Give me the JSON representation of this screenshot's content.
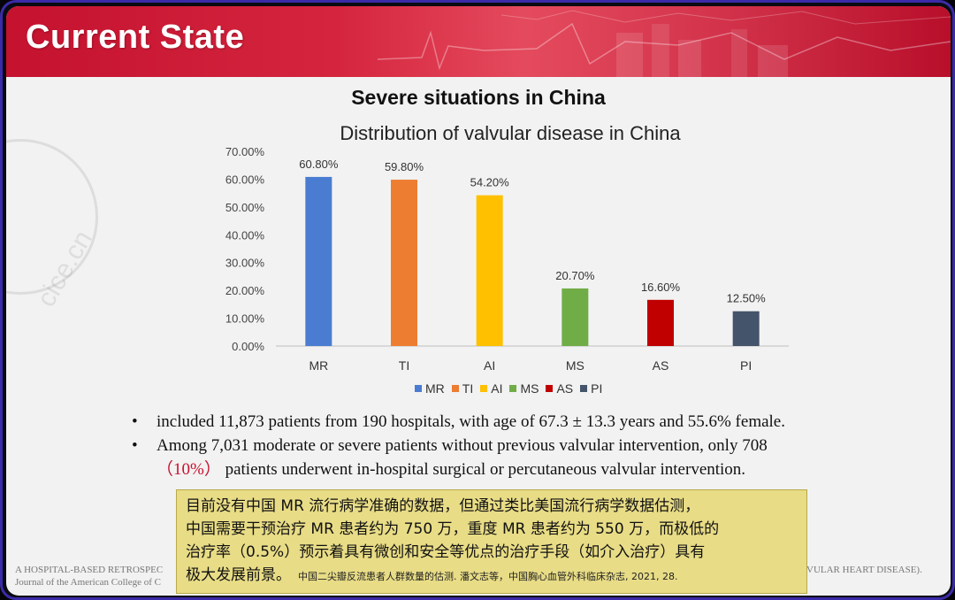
{
  "slide": {
    "banner_title": "Current State",
    "heading": "Severe situations in China"
  },
  "chart_data": {
    "type": "bar",
    "title": "Distribution of valvular disease in China",
    "categories": [
      "MR",
      "TI",
      "AI",
      "MS",
      "AS",
      "PI"
    ],
    "values": [
      60.8,
      59.8,
      54.2,
      20.7,
      16.6,
      12.5
    ],
    "data_labels": [
      "60.80%",
      "59.80%",
      "54.20%",
      "20.70%",
      "16.60%",
      "12.50%"
    ],
    "colors": [
      "#4a7dd1",
      "#ed7d31",
      "#ffc000",
      "#70ad47",
      "#c00000",
      "#44546a"
    ],
    "ylim": [
      0,
      70
    ],
    "yticks": [
      0,
      10,
      20,
      30,
      40,
      50,
      60,
      70
    ],
    "ytick_labels": [
      "0.00%",
      "10.00%",
      "20.00%",
      "30.00%",
      "40.00%",
      "50.00%",
      "60.00%",
      "70.00%"
    ],
    "legend": [
      "MR",
      "TI",
      "AI",
      "MS",
      "AS",
      "PI"
    ],
    "legend_position": "bottom",
    "grid": false
  },
  "bullets": {
    "b1": "included 11,873 patients from 190 hospitals, with age of 67.3 ± 13.3 years and 55.6% female.",
    "b2_part1": "Among 7,031 moderate or severe patients without previous valvular intervention, only 708",
    "b2_highlight": "（10%）",
    "b2_part2": "patients underwent in-hospital surgical or percutaneous valvular intervention.",
    "bullet_symbol": "•"
  },
  "reference": {
    "line1_left": "A HOSPITAL-BASED RETROSPEC",
    "line1_right": "VULAR HEART DISEASE).",
    "line2_left": "Journal of the American College of C"
  },
  "chinese_note": {
    "line1": "目前没有中国 MR 流行病学准确的数据，但通过类比美国流行病学数据估测，",
    "line2": "中国需要干预治疗 MR 患者约为 750 万，重度 MR 患者约为 550 万，而极低的",
    "line3": "治疗率（0.5%）预示着具有微创和安全等优点的治疗手段（如介入治疗）具有",
    "line4": "极大发展前景。",
    "source": "中国二尖瓣反流患者人群数量的估测. 潘文志等，中国胸心血管外科临床杂志, 2021, 28."
  },
  "watermark_text": "cice.cn"
}
